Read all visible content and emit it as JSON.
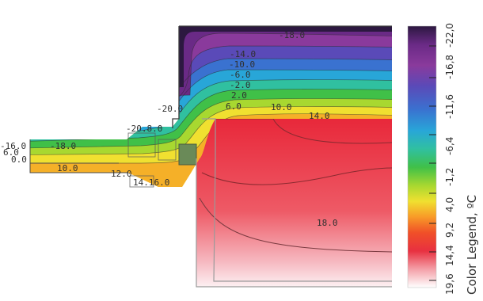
{
  "legend": {
    "title": "Color Legend, ºC",
    "tick_labels": [
      "-22,0",
      "-16,8",
      "-11,6",
      "-6,4",
      "-1,2",
      "4,0",
      "9,2",
      "14,4",
      "19,6"
    ],
    "colors_top_to_bottom": [
      "#2c1840",
      "#6a2a86",
      "#8a3a9c",
      "#5a4ab8",
      "#3a72d0",
      "#28a6d8",
      "#30c0a0",
      "#40c048",
      "#a8d830",
      "#f0e030",
      "#f89a28",
      "#f05028",
      "#e83040",
      "#f4a0a8",
      "#ffffff"
    ]
  },
  "isotherm_labels": {
    "minus18_top": "-18.0",
    "minus14": "-14.0",
    "minus10": "-10.0",
    "minus6": "-6.0",
    "minus2": "-2.0",
    "plus2": "2.0",
    "plus6": "6.0",
    "plus10_right": "10.0",
    "plus14": "14.0",
    "minus20": "-20.0",
    "overlap_mid": "-20.8.0",
    "minus16_left": "-16.0",
    "minus18_left": "-18.0",
    "overlap_left": "6.0",
    "zero_left": "0.0",
    "plus10_left": "10.0",
    "plus12": "12.0",
    "overlap_bottom": "14.16.0",
    "plus18": "18.0"
  }
}
